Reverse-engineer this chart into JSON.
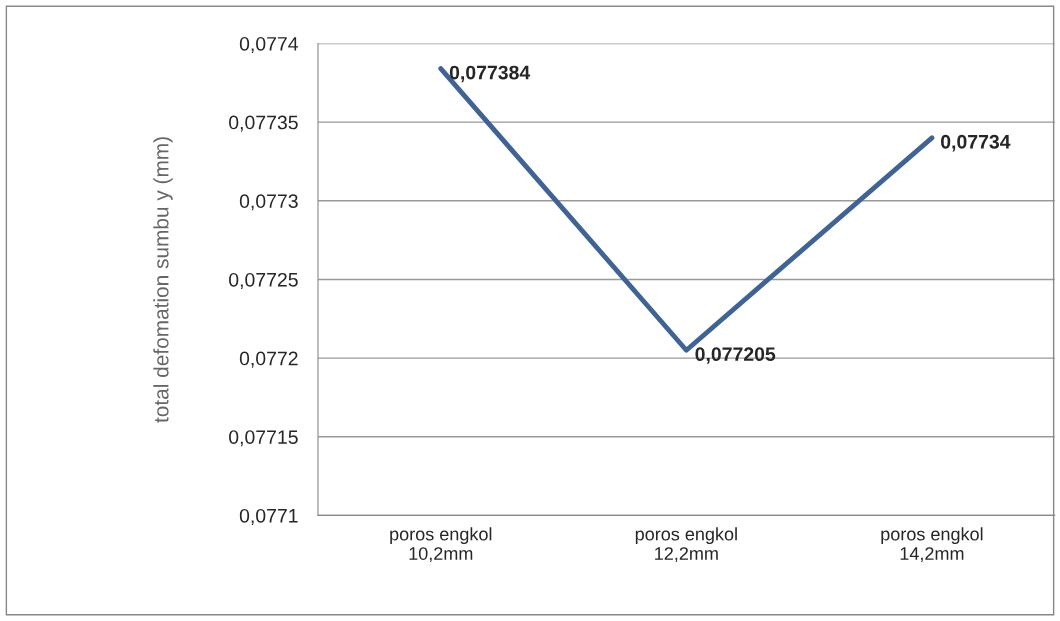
{
  "chart_data": {
    "type": "line",
    "ylabel": "total defomation sumbu y (mm)",
    "categories": [
      "poros engkol\n10,2mm",
      "poros engkol\n12,2mm",
      "poros engkol\n14,2mm"
    ],
    "series": [
      {
        "color": "#3f6395",
        "values": [
          0.077384,
          0.077205,
          0.07734
        ],
        "value_labels": [
          "0,077384",
          "0,077205",
          "0,07734"
        ]
      }
    ],
    "ylim": [
      0.0771,
      0.0774
    ],
    "yticks": [
      {
        "value": 0.0771,
        "label": "0,0771"
      },
      {
        "value": 0.07715,
        "label": "0,07715"
      },
      {
        "value": 0.0772,
        "label": "0,0772"
      },
      {
        "value": 0.07725,
        "label": "0,07725"
      },
      {
        "value": 0.0773,
        "label": "0,0773"
      },
      {
        "value": 0.07735,
        "label": "0,07735"
      },
      {
        "value": 0.0774,
        "label": "0,0774"
      }
    ],
    "grid": "y",
    "legend": false,
    "marker": "none",
    "line_style": "solid"
  }
}
